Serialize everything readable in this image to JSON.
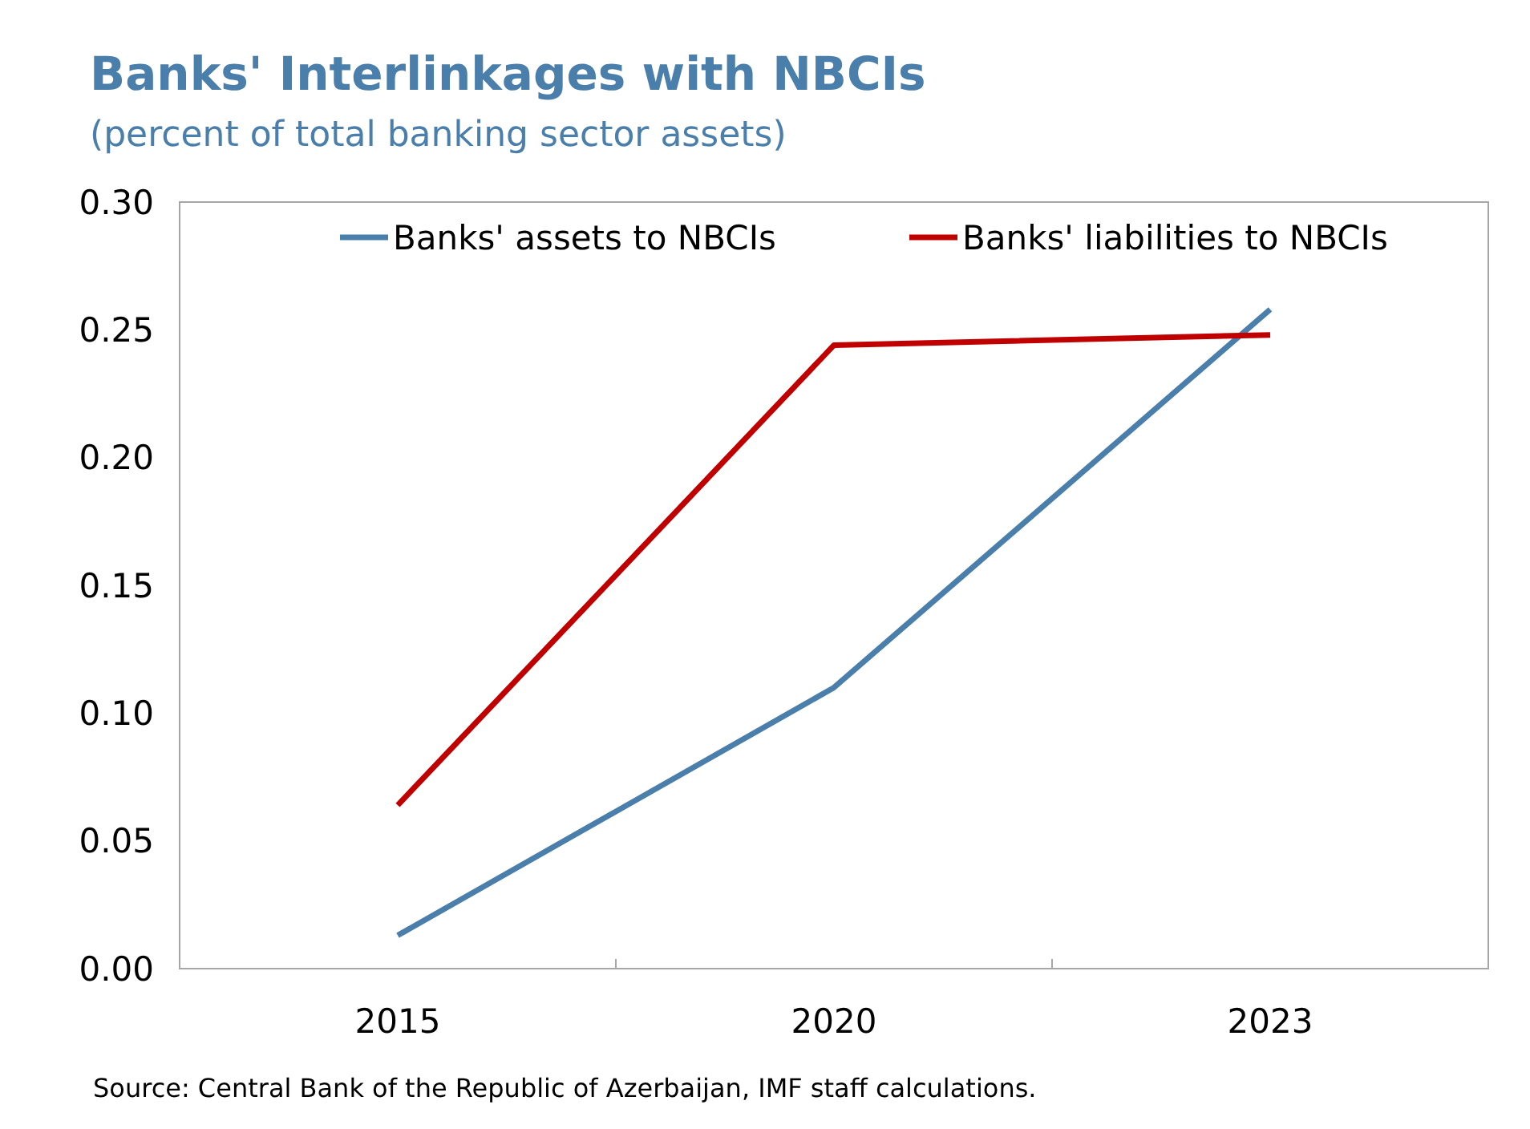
{
  "chart_data": {
    "type": "line",
    "title": "Banks' Interlinkages with NBCIs",
    "subtitle": "(percent of total banking sector assets)",
    "categories": [
      "2015",
      "2020",
      "2023"
    ],
    "series": [
      {
        "name": "Banks' assets to NBCIs",
        "color": "#4a7eab",
        "values": [
          0.013,
          0.11,
          0.258
        ]
      },
      {
        "name": "Banks' liabilities to NBCIs",
        "color": "#c00000",
        "values": [
          0.064,
          0.244,
          0.248
        ]
      }
    ],
    "ylim": [
      0,
      0.3
    ],
    "yticks": [
      {
        "value": 0,
        "label": "0.00"
      },
      {
        "value": 0.05,
        "label": "0.05"
      },
      {
        "value": 0.1,
        "label": "0.10"
      },
      {
        "value": 0.15,
        "label": "0.15"
      },
      {
        "value": 0.2,
        "label": "0.20"
      },
      {
        "value": 0.25,
        "label": "0.25"
      },
      {
        "value": 0.3,
        "label": "0.30"
      }
    ],
    "grid": false,
    "legend": "top",
    "marker": "none",
    "line_style": "solid",
    "annotations": [
      "Source: Central Bank of the Republic of Azerbaijan, IMF staff calculations."
    ]
  }
}
